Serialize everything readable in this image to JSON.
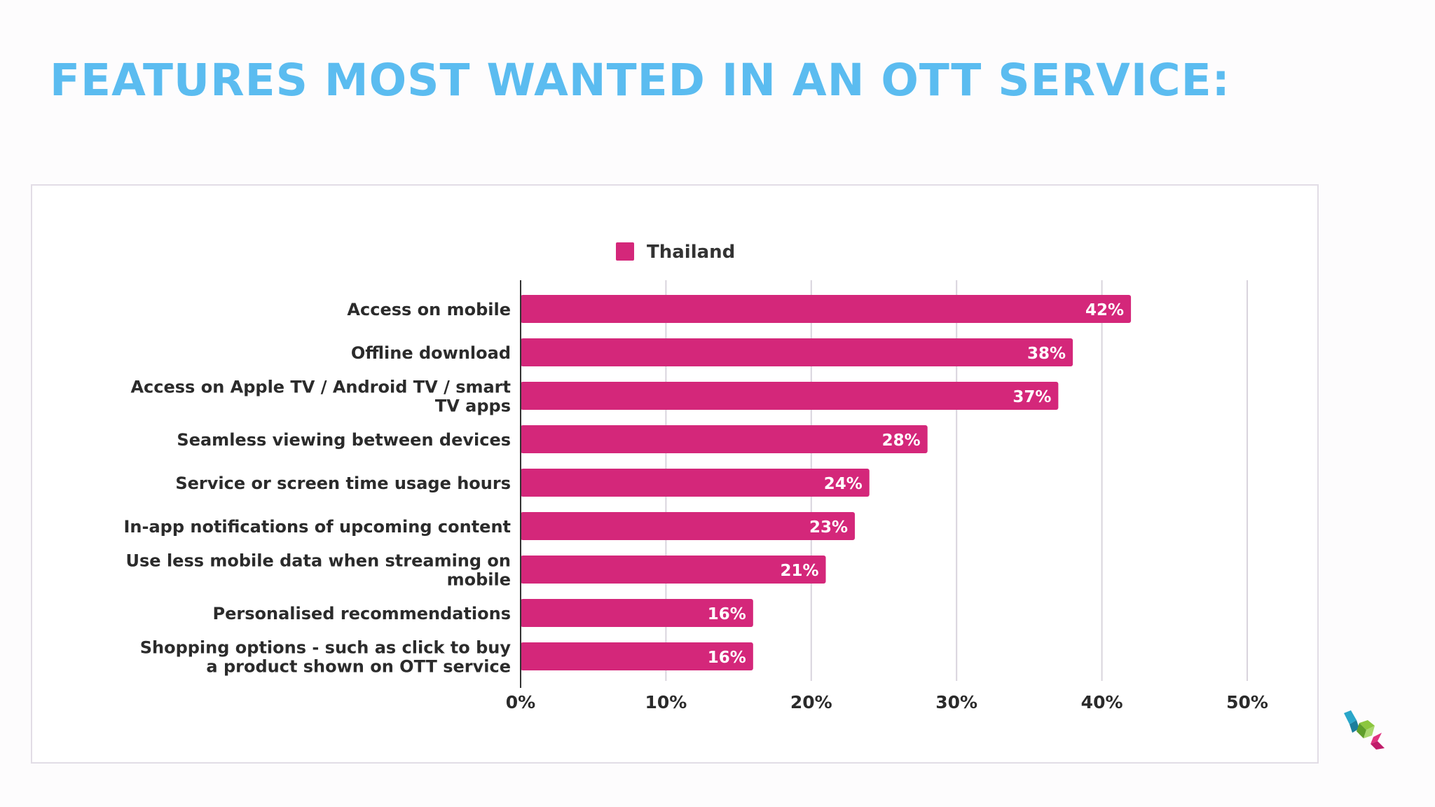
{
  "slide": {
    "title": "FEATURES MOST WANTED IN AN OTT SERVICE:"
  },
  "colors": {
    "title": "#5bbcf0",
    "bar": "#d4277a",
    "grid": "#d9d4dd",
    "axis": "#333333",
    "label": "#2b2b2b"
  },
  "chart_data": {
    "type": "bar",
    "orientation": "horizontal",
    "categories": [
      "Access on mobile",
      "Offline download",
      "Access on Apple TV / Android TV / smart TV apps",
      "Seamless viewing between devices",
      "Service or screen time usage hours",
      "In-app notifications of upcoming content",
      "Use less mobile data when streaming on mobile",
      "Personalised recommendations",
      "Shopping options - such as click to buy a product shown on OTT service"
    ],
    "category_lines": [
      [
        "Access on mobile"
      ],
      [
        "Offline download"
      ],
      [
        "Access on Apple TV / Android TV / smart",
        "TV apps"
      ],
      [
        "Seamless viewing between devices"
      ],
      [
        "Service or screen time usage hours"
      ],
      [
        "In-app notifications of upcoming content"
      ],
      [
        "Use less mobile data when streaming on",
        "mobile"
      ],
      [
        "Personalised recommendations"
      ],
      [
        "Shopping options - such as click to buy",
        "a product shown on OTT service"
      ]
    ],
    "series": [
      {
        "name": "Thailand",
        "values": [
          42,
          38,
          37,
          28,
          24,
          23,
          21,
          16,
          16
        ]
      }
    ],
    "data_labels": [
      "42%",
      "38%",
      "37%",
      "28%",
      "24%",
      "23%",
      "21%",
      "16%",
      "16%"
    ],
    "xlim": [
      0,
      50
    ],
    "xticks": [
      0,
      10,
      20,
      30,
      40,
      50
    ],
    "xtick_labels": [
      "0%",
      "10%",
      "20%",
      "30%",
      "40%",
      "50%"
    ],
    "grid": true,
    "legend": {
      "position": "top",
      "entries": [
        "Thailand"
      ]
    }
  },
  "logo": {
    "icon": "cubes-logo-icon"
  }
}
